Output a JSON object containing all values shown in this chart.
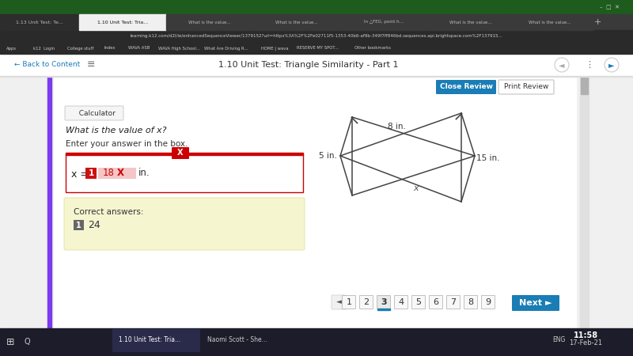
{
  "bg_color": "#f0f0f0",
  "content_bg": "#ffffff",
  "title_bar_text": "1.10 Unit Test: Triangle Similarity - Part 1",
  "browser_bg": "#202124",
  "tab_bar_bg": "#3c3c3c",
  "calculator_label": "  Calculator",
  "question_text": "What is the value of x?",
  "instruction_text": "Enter your answer in the box.",
  "answer_label": "x =",
  "answer_value": "18",
  "answer_unit": "in.",
  "correct_answers_label": "Correct answers:",
  "correct_answer_val": "24",
  "correct_answers_bg": "#f5f5d0",
  "close_review_btn": "Close Review",
  "print_review_btn": "Print Review",
  "close_review_color": "#1a7db5",
  "nav_pages": [
    "1",
    "2",
    "3",
    "4",
    "5",
    "6",
    "7",
    "8",
    "9"
  ],
  "nav_current": 3,
  "next_btn": "Next ►",
  "shape_label_8": "8 in.",
  "shape_label_5": "5 in.",
  "shape_label_15": "15 in.",
  "shape_label_x": "x",
  "triangle_color": "#444444",
  "bottom_bar_bg": "#1c1c2a",
  "time_text": "11:58",
  "date_text": "17-Feb-21",
  "sidebar_color": "#7c3aed",
  "addr_bar_text": "learning.k12.com/d2l/le/enhancedSequenceViewer/1379152?url=https%3A%2F%2Fe02711f5-1353-40b6-af9b-349f7ff846bd.sequences.api.brightspace.com%2F137915..."
}
